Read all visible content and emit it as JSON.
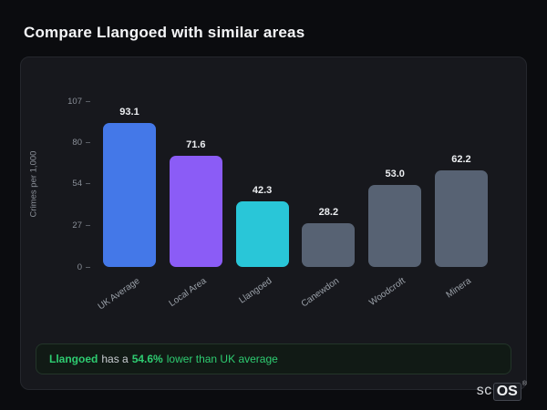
{
  "page": {
    "title": "Compare Llangoed with similar areas"
  },
  "chart_data": {
    "type": "bar",
    "title": "Compare Llangoed with similar areas",
    "xlabel": "",
    "ylabel": "Crimes per 1,000",
    "ylim": [
      0,
      107
    ],
    "yticks": [
      0,
      27,
      54,
      80,
      107
    ],
    "categories": [
      "UK Average",
      "Local Area",
      "Llangoed",
      "Canewdon",
      "Woodcroft",
      "Minera"
    ],
    "values": [
      93.1,
      71.6,
      42.3,
      28.2,
      53.0,
      62.2
    ],
    "bar_colors": [
      "#4478e8",
      "#8b5cf6",
      "#29c6d8",
      "#576273",
      "#576273",
      "#576273"
    ],
    "grid": false,
    "legend": false
  },
  "footer": {
    "area_name": "Llangoed",
    "middle_text": "has a",
    "value_text": "54.6%",
    "rest_text": "lower than UK average",
    "accent_color": "#2ecc71"
  },
  "watermark": {
    "prefix": "sc",
    "suffix": "OS",
    "registered": "®"
  }
}
